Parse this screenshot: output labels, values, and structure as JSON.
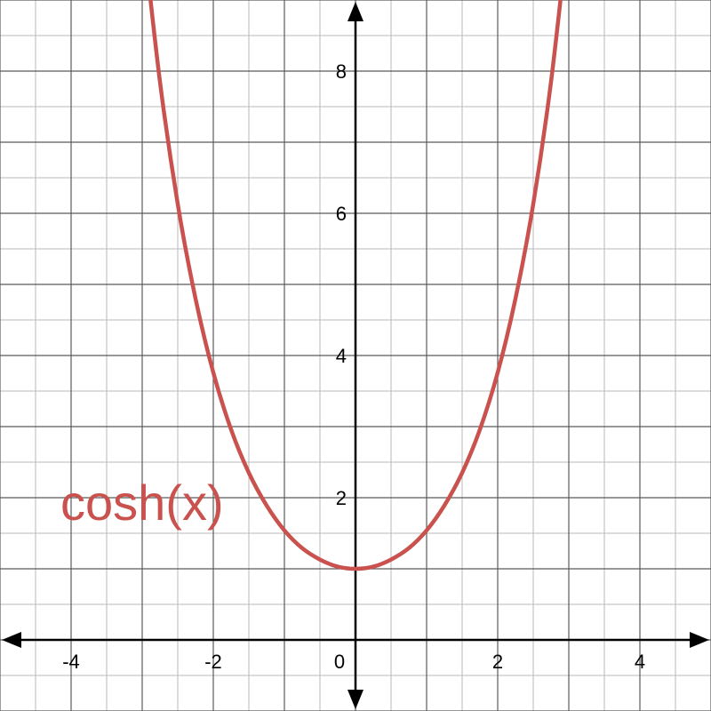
{
  "chart_data": {
    "type": "line",
    "function": "cosh(x)",
    "xlim": [
      -5,
      5
    ],
    "ylim": [
      -1,
      9
    ],
    "grid": true,
    "minor_grid_step": 0.5,
    "major_grid_step": 1,
    "x_ticks": [
      {
        "value": -4,
        "label": "-4"
      },
      {
        "value": -2,
        "label": "-2"
      },
      {
        "value": 2,
        "label": "2"
      },
      {
        "value": 4,
        "label": "4"
      }
    ],
    "y_ticks": [
      {
        "value": 2,
        "label": "2"
      },
      {
        "value": 4,
        "label": "4"
      },
      {
        "value": 6,
        "label": "6"
      },
      {
        "value": 8,
        "label": "8"
      }
    ],
    "origin_label": "0",
    "series": [
      {
        "label": "cosh(x)",
        "color": "#c9524f",
        "x": [
          -3,
          -2.75,
          -2.5,
          -2.25,
          -2,
          -1.75,
          -1.5,
          -1.25,
          -1,
          -0.75,
          -0.5,
          -0.25,
          0,
          0.25,
          0.5,
          0.75,
          1,
          1.25,
          1.5,
          1.75,
          2,
          2.25,
          2.5,
          2.75,
          3
        ],
        "y": [
          10.07,
          7.85,
          6.13,
          4.8,
          3.76,
          2.96,
          2.35,
          1.89,
          1.54,
          1.29,
          1.13,
          1.03,
          1.0,
          1.03,
          1.13,
          1.29,
          1.54,
          1.89,
          2.35,
          2.96,
          3.76,
          4.8,
          6.13,
          7.85,
          10.07
        ]
      }
    ]
  }
}
